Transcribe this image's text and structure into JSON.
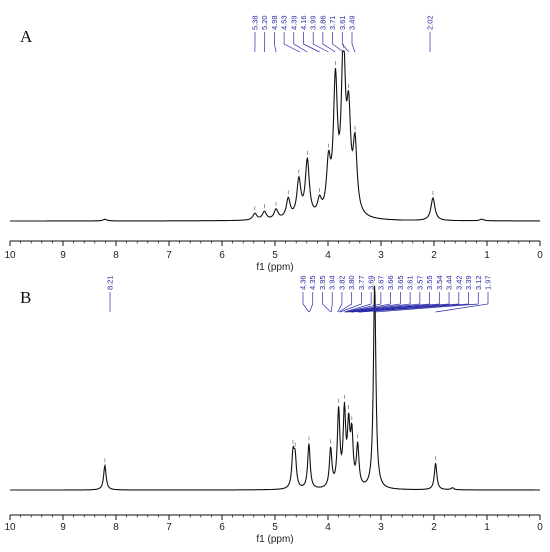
{
  "chart_data": [
    {
      "type": "line",
      "panel_label": "A",
      "xlabel": "f1 (ppm)",
      "xlim": [
        10,
        0
      ],
      "x_ticks": [
        "10",
        "9",
        "8",
        "7",
        "6",
        "5",
        "4",
        "3",
        "2",
        "1",
        "0"
      ],
      "peak_labels": [
        "5.38",
        "5.20",
        "4.98",
        "4.53",
        "4.39",
        "4.16",
        "3.99",
        "3.86",
        "3.71",
        "3.61",
        "3.49",
        "2.02"
      ],
      "peaks": [
        {
          "x": 8.21,
          "y": 0.01
        },
        {
          "x": 5.38,
          "y": 0.04
        },
        {
          "x": 5.2,
          "y": 0.05
        },
        {
          "x": 4.98,
          "y": 0.06
        },
        {
          "x": 4.75,
          "y": 0.12
        },
        {
          "x": 4.55,
          "y": 0.23
        },
        {
          "x": 4.39,
          "y": 0.35
        },
        {
          "x": 4.16,
          "y": 0.09
        },
        {
          "x": 3.99,
          "y": 0.3
        },
        {
          "x": 3.86,
          "y": 0.8
        },
        {
          "x": 3.71,
          "y": 1.0
        },
        {
          "x": 3.61,
          "y": 0.55
        },
        {
          "x": 3.49,
          "y": 0.42
        },
        {
          "x": 2.02,
          "y": 0.14
        },
        {
          "x": 1.1,
          "y": 0.01
        }
      ]
    },
    {
      "type": "line",
      "panel_label": "B",
      "xlabel": "f1 (ppm)",
      "xlim": [
        10,
        0
      ],
      "x_ticks": [
        "10",
        "9",
        "8",
        "7",
        "6",
        "5",
        "4",
        "3",
        "2",
        "1",
        "0"
      ],
      "peak_labels_left": [
        "8.21"
      ],
      "peak_labels_right": [
        "4.36",
        "4.35",
        "3.95",
        "3.94",
        "3.82",
        "3.80",
        "3.77",
        "3.69",
        "3.67",
        "3.66",
        "3.65",
        "3.61",
        "3.57",
        "3.55",
        "3.54",
        "3.44",
        "3.42",
        "3.39",
        "3.12",
        "1.97"
      ],
      "peaks": [
        {
          "x": 8.21,
          "y": 0.12
        },
        {
          "x": 4.66,
          "y": 0.16
        },
        {
          "x": 4.62,
          "y": 0.14
        },
        {
          "x": 4.36,
          "y": 0.22
        },
        {
          "x": 3.95,
          "y": 0.19
        },
        {
          "x": 3.8,
          "y": 0.37
        },
        {
          "x": 3.69,
          "y": 0.36
        },
        {
          "x": 3.61,
          "y": 0.28
        },
        {
          "x": 3.55,
          "y": 0.24
        },
        {
          "x": 3.44,
          "y": 0.2
        },
        {
          "x": 3.12,
          "y": 1.0
        },
        {
          "x": 1.97,
          "y": 0.13
        },
        {
          "x": 1.65,
          "y": 0.01
        }
      ]
    }
  ]
}
